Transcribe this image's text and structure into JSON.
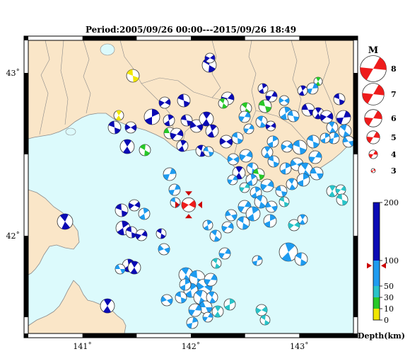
{
  "title": "Period:2005/09/26 00:00---2015/09/26 18:49",
  "map": {
    "lon_range": [
      140.5,
      143.5
    ],
    "lat_range": [
      41.4,
      43.2
    ],
    "lon_ticks": [
      {
        "value": 141,
        "label": "141˚"
      },
      {
        "value": 142,
        "label": "142˚"
      },
      {
        "value": 143,
        "label": "143˚"
      }
    ],
    "lat_ticks": [
      {
        "value": 43,
        "label": "43˚"
      },
      {
        "value": 42,
        "label": "42˚"
      }
    ],
    "sea_color": "#dcfafc",
    "land_color": "#fae6c8"
  },
  "magnitude_legend": {
    "title": "M",
    "entries": [
      {
        "label": "8",
        "mag": 8
      },
      {
        "label": "7",
        "mag": 7
      },
      {
        "label": "6",
        "mag": 6
      },
      {
        "label": "5",
        "mag": 5
      },
      {
        "label": "4",
        "mag": 4
      },
      {
        "label": "3",
        "mag": 3
      }
    ],
    "color": "#ee1c1c"
  },
  "depth_scale": {
    "title": "Depth(km)",
    "ticks": [
      {
        "value": 200,
        "label": "200"
      },
      {
        "value": 100,
        "label": "100"
      },
      {
        "value": 50,
        "label": "50"
      },
      {
        "value": 30,
        "label": "30"
      },
      {
        "value": 10,
        "label": "10"
      },
      {
        "value": 0,
        "label": "0"
      }
    ],
    "bands": [
      {
        "from": 100,
        "to": 200,
        "color": "#0a0ab4"
      },
      {
        "from": 50,
        "to": 100,
        "color": "#1e9bf0"
      },
      {
        "from": 30,
        "to": 50,
        "color": "#28c3c8"
      },
      {
        "from": 10,
        "to": 30,
        "color": "#28c828"
      },
      {
        "from": 0,
        "to": 10,
        "color": "#f0e600"
      }
    ],
    "marker_depth": 90
  },
  "main_event": {
    "lon": 141.98,
    "lat": 42.19,
    "mag": 5.8,
    "color": "#ee1c1c"
  },
  "colors": {
    "deep": "#0a0ab4",
    "mid": "#1e9bf0",
    "shallow": "#28c3c8",
    "green": "#28c828",
    "yellow": "#f0e600"
  }
}
